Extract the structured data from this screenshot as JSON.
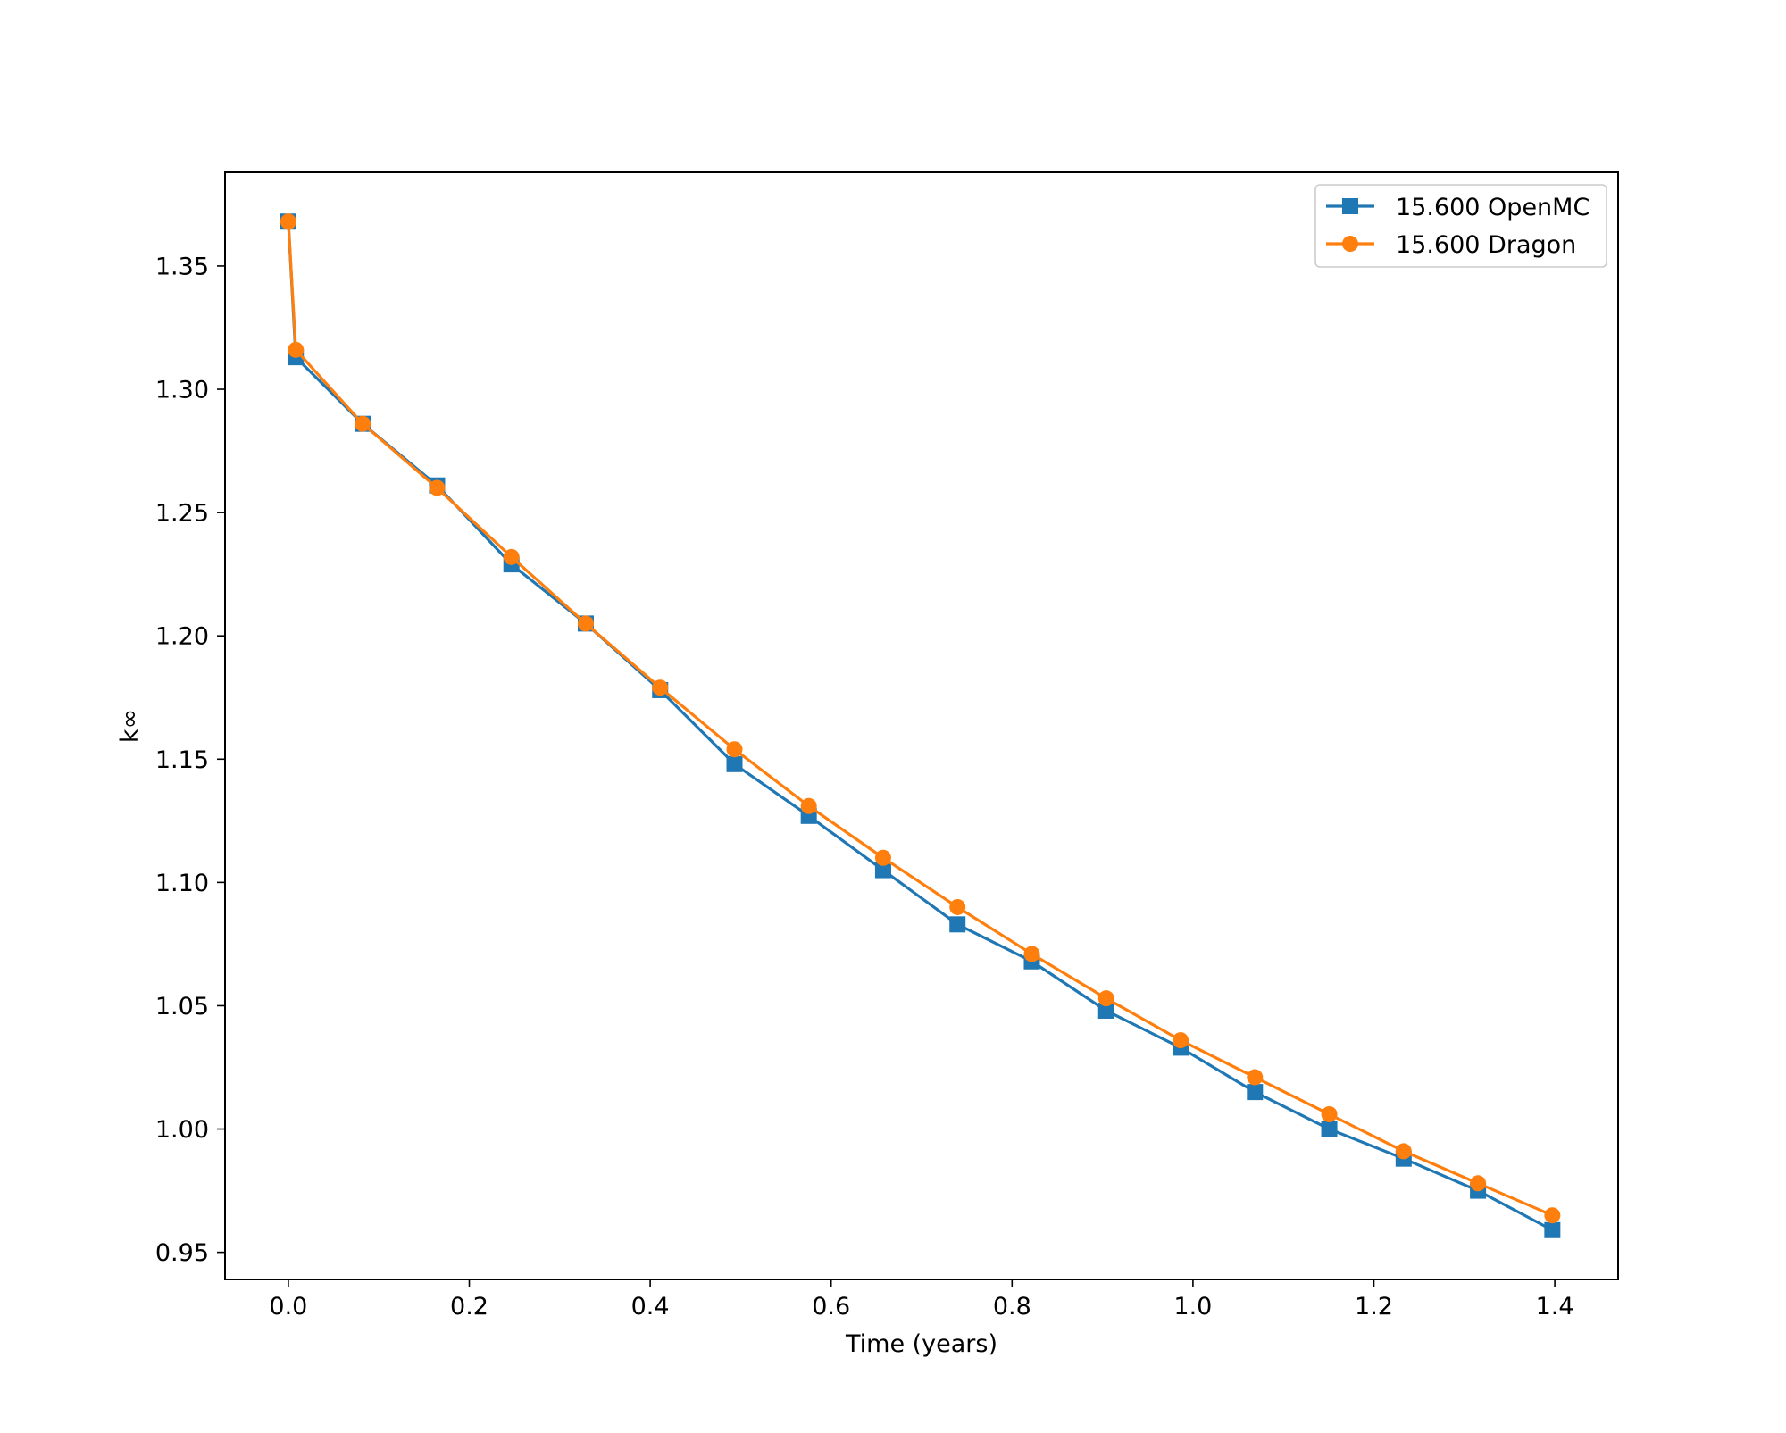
{
  "chart_data": {
    "type": "line",
    "title": "",
    "xlabel": "Time (years)",
    "ylabel": "k∞",
    "xlim": [
      -0.07,
      1.47
    ],
    "ylim": [
      0.939,
      1.388
    ],
    "xticks": [
      0.0,
      0.2,
      0.4,
      0.6,
      0.8,
      1.0,
      1.2,
      1.4
    ],
    "xtick_labels": [
      "0.0",
      "0.2",
      "0.4",
      "0.6",
      "0.8",
      "1.0",
      "1.2",
      "1.4"
    ],
    "yticks": [
      0.95,
      1.0,
      1.05,
      1.1,
      1.15,
      1.2,
      1.25,
      1.3,
      1.35
    ],
    "ytick_labels": [
      "0.95",
      "1.00",
      "1.05",
      "1.10",
      "1.15",
      "1.20",
      "1.25",
      "1.30",
      "1.35"
    ],
    "grid": false,
    "legend_position": "top-right",
    "x": [
      0.0,
      0.0082,
      0.0822,
      0.1644,
      0.2466,
      0.3288,
      0.411,
      0.4932,
      0.5753,
      0.6575,
      0.7397,
      0.8219,
      0.9041,
      0.9863,
      1.0685,
      1.1507,
      1.2329,
      1.3151,
      1.3973
    ],
    "series": [
      {
        "name": "15.600 OpenMC",
        "color": "#1f77b4",
        "marker": "square",
        "values": [
          1.368,
          1.313,
          1.286,
          1.261,
          1.229,
          1.205,
          1.178,
          1.148,
          1.127,
          1.105,
          1.083,
          1.068,
          1.048,
          1.033,
          1.015,
          1.0,
          0.988,
          0.975,
          0.959
        ]
      },
      {
        "name": "15.600 Dragon",
        "color": "#ff7f0e",
        "marker": "circle",
        "values": [
          1.368,
          1.316,
          1.286,
          1.26,
          1.232,
          1.205,
          1.179,
          1.154,
          1.131,
          1.11,
          1.09,
          1.071,
          1.053,
          1.036,
          1.021,
          1.006,
          0.991,
          0.978,
          0.965
        ]
      }
    ]
  }
}
